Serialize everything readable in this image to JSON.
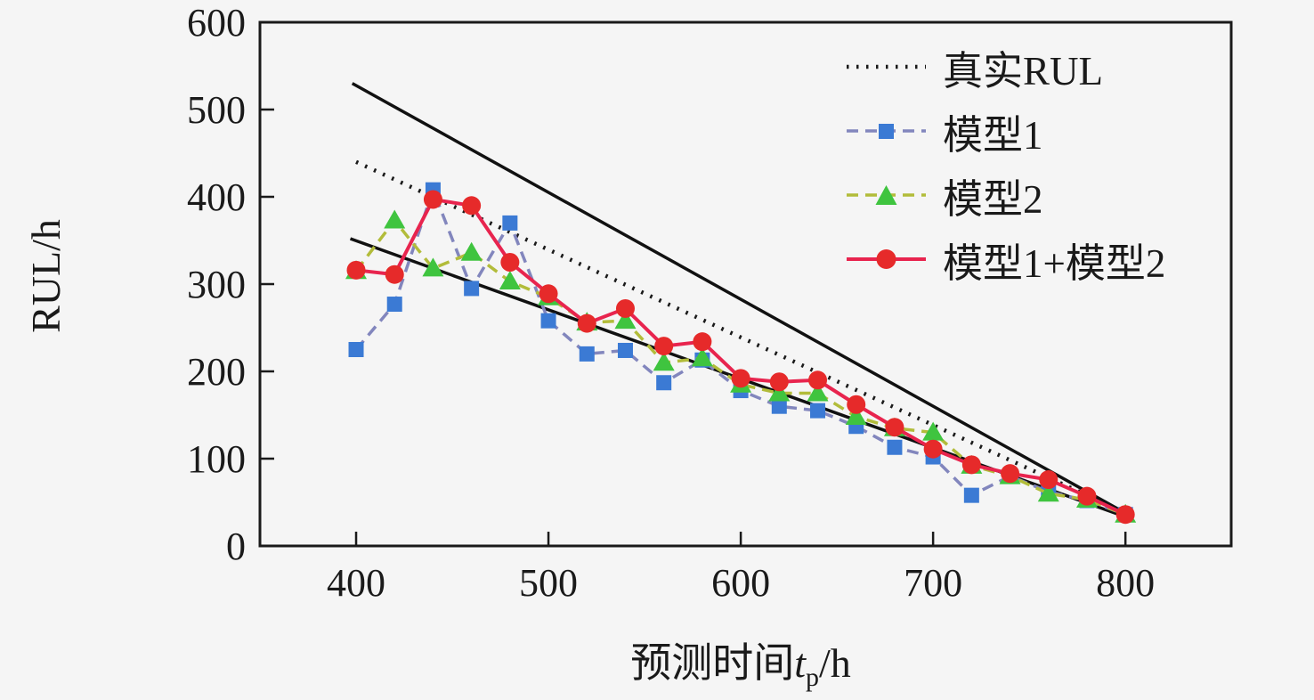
{
  "figure": {
    "background": "#f5f5f5",
    "frame_color": "#1a1a1a"
  },
  "chart_data": {
    "type": "line",
    "title": "",
    "ylabel": "RUL/h",
    "xlabel_parts": {
      "prefix": "预测时间",
      "var": "t",
      "sub": "p",
      "suffix": "/h"
    },
    "xlim": [
      350,
      855
    ],
    "ylim": [
      0,
      600
    ],
    "x_ticks": [
      "400",
      "500",
      "600",
      "700",
      "800"
    ],
    "x_tick_values": [
      400,
      500,
      600,
      700,
      800
    ],
    "y_ticks": [
      "0",
      "100",
      "200",
      "300",
      "400",
      "500",
      "600"
    ],
    "y_tick_values": [
      0,
      100,
      200,
      300,
      400,
      500,
      600
    ],
    "grid": false,
    "legend_position": "upper-right-inside-no-border",
    "x": [
      400,
      420,
      440,
      460,
      480,
      500,
      520,
      540,
      560,
      580,
      600,
      620,
      640,
      660,
      680,
      700,
      720,
      740,
      760,
      780,
      800
    ],
    "series": [
      {
        "name": "真实RUL",
        "kind": "straight-line",
        "style": "dotted",
        "color": "#1a1a1a",
        "x": [
          400,
          802
        ],
        "y": [
          440,
          36
        ]
      },
      {
        "name": "模型1",
        "kind": "markers-dashed-line",
        "marker": "square",
        "marker_color": "#3b7ad4",
        "line_color": "#8286bd",
        "values": [
          225,
          277,
          408,
          295,
          370,
          258,
          220,
          224,
          187,
          213,
          178,
          160,
          155,
          137,
          113,
          102,
          58,
          80,
          62,
          52,
          36
        ]
      },
      {
        "name": "模型2",
        "kind": "markers-dashed-line",
        "marker": "triangle",
        "marker_color": "#3fc43f",
        "line_color": "#b2bc3a",
        "values": [
          315,
          373,
          318,
          336,
          303,
          285,
          256,
          258,
          210,
          215,
          185,
          175,
          175,
          148,
          135,
          130,
          92,
          80,
          60,
          53,
          36
        ]
      },
      {
        "name": "模型1+模型2",
        "kind": "markers-solid-line",
        "marker": "circle",
        "marker_color": "#e62a2a",
        "line_color": "#e8244e",
        "values": [
          316,
          311,
          397,
          390,
          325,
          289,
          255,
          272,
          229,
          234,
          192,
          188,
          190,
          162,
          136,
          111,
          93,
          83,
          76,
          57,
          36
        ]
      }
    ],
    "bounds": [
      {
        "name": "upper-bound",
        "color": "#111111",
        "x": [
          398,
          803
        ],
        "y": [
          530,
          34
        ]
      },
      {
        "name": "lower-bound",
        "color": "#111111",
        "x": [
          397,
          803
        ],
        "y": [
          352,
          31
        ]
      }
    ],
    "legend": [
      {
        "label": "真实RUL"
      },
      {
        "label": "模型1"
      },
      {
        "label": "模型2"
      },
      {
        "label": "模型1+模型2"
      }
    ]
  }
}
